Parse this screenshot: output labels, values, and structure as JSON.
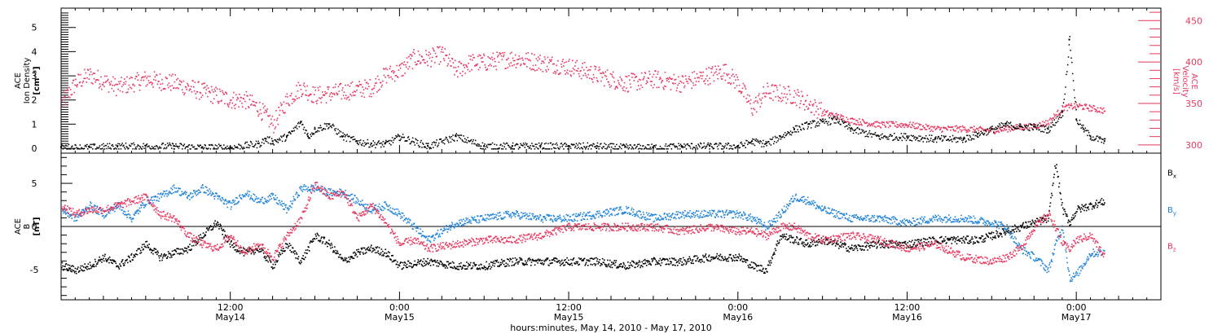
{
  "colors": {
    "axis": "#000000",
    "black": "#000000",
    "pink": "#e8385f",
    "blue": "#1f83d8"
  },
  "x_axis": {
    "title": "hours:minutes, May 14, 2010 - May 17, 2010",
    "ticks": [
      {
        "t": 12,
        "time": "12:00",
        "day": "May14"
      },
      {
        "t": 24,
        "time": "0:00",
        "day": "May15"
      },
      {
        "t": 36,
        "time": "12:00",
        "day": "May15"
      },
      {
        "t": 48,
        "time": "0:00",
        "day": "May16"
      },
      {
        "t": 60,
        "time": "12:00",
        "day": "May16"
      },
      {
        "t": 72,
        "time": "0:00",
        "day": "May17"
      }
    ]
  },
  "top_panel": {
    "left_label": [
      "ACE",
      "Ion Density",
      "[cm⁻³]"
    ],
    "right_label": [
      "ACE",
      "Velocity",
      "[km/s]"
    ]
  },
  "bottom_panel": {
    "left_label": [
      "ACE",
      "B",
      "[nT]"
    ],
    "legend": [
      {
        "text": "B",
        "sub": "x",
        "color": "#000000"
      },
      {
        "text": "B",
        "sub": "y",
        "color": "#1f83d8"
      },
      {
        "text": "B",
        "sub": "z",
        "color": "#e8385f"
      }
    ]
  },
  "chart_data": [
    {
      "type": "scatter",
      "xlim": [
        0,
        78
      ],
      "x_unit": "hours since 0:00 May 14, 2010",
      "ylim": [
        -0.2,
        5.8
      ],
      "ylabel": "ACE Ion Density [cm⁻³]",
      "y2lim": [
        290,
        465
      ],
      "y2label": "ACE Velocity [km/s]",
      "yticks": [
        0,
        1,
        2,
        3,
        4,
        5
      ],
      "y2ticks": [
        300,
        350,
        400,
        450
      ],
      "series": [
        {
          "axis": "left",
          "color": "#000000",
          "t": [
            0,
            2,
            4,
            6,
            8,
            10,
            12,
            14,
            14.5,
            15,
            16,
            17,
            17.5,
            18,
            19,
            20,
            21,
            22,
            23,
            24,
            26,
            28,
            30,
            32,
            34,
            36,
            38,
            40,
            42,
            44,
            46,
            48,
            49,
            50,
            51,
            52,
            53,
            54,
            55,
            56,
            58,
            60,
            62,
            64,
            65,
            66,
            67,
            68,
            69,
            70,
            71,
            71.5,
            72,
            72.5,
            73,
            74
          ],
          "values": [
            0.05,
            0.05,
            0.1,
            0.1,
            0.1,
            0.05,
            0.05,
            0.2,
            0.4,
            0.3,
            0.5,
            1.1,
            0.5,
            0.8,
            1.0,
            0.5,
            0.3,
            0.2,
            0.2,
            0.5,
            0.1,
            0.5,
            0.1,
            0.1,
            0.1,
            0.1,
            0.1,
            0.05,
            0.05,
            0.1,
            0.1,
            0.1,
            0.3,
            0.2,
            0.5,
            0.8,
            1.0,
            1.1,
            1.2,
            0.8,
            0.5,
            0.5,
            0.4,
            0.4,
            0.6,
            0.8,
            1.0,
            0.9,
            0.9,
            0.8,
            1.5,
            4.5,
            1.2,
            0.8,
            0.5,
            0.3
          ]
        },
        {
          "axis": "right",
          "color": "#e8385f",
          "t": [
            0,
            1,
            2,
            4,
            6,
            8,
            10,
            12,
            13,
            14,
            14.5,
            15,
            16,
            17,
            18,
            20,
            22,
            23,
            24,
            25,
            26,
            27,
            28,
            29,
            30,
            32,
            34,
            36,
            38,
            40,
            42,
            44,
            46,
            47,
            48,
            49,
            50,
            52,
            54,
            55,
            56,
            58,
            60,
            62,
            64,
            66,
            67,
            68,
            69,
            70,
            71,
            72,
            73,
            74
          ],
          "values": [
            350,
            375,
            385,
            370,
            380,
            375,
            365,
            355,
            355,
            345,
            335,
            325,
            355,
            370,
            360,
            365,
            370,
            385,
            390,
            405,
            405,
            410,
            390,
            400,
            400,
            405,
            400,
            395,
            385,
            375,
            380,
            375,
            385,
            390,
            375,
            345,
            365,
            360,
            340,
            335,
            330,
            325,
            325,
            320,
            320,
            318,
            320,
            322,
            323,
            328,
            345,
            348,
            345,
            342
          ]
        }
      ]
    },
    {
      "type": "scatter",
      "xlim": [
        0,
        78
      ],
      "x_unit": "hours since 0:00 May 14, 2010",
      "ylim": [
        -8.5,
        8.5
      ],
      "ylabel": "ACE B [nT]",
      "yticks": [
        -5,
        0,
        5
      ],
      "zero_line": true,
      "series": [
        {
          "name": "Bx",
          "color": "#000000",
          "t": [
            0,
            1,
            2,
            3,
            4,
            5,
            6,
            7,
            8,
            9,
            10,
            11,
            12,
            13,
            14,
            15,
            16,
            17,
            18,
            19,
            20,
            21,
            22,
            23,
            24,
            26,
            28,
            30,
            32,
            34,
            36,
            38,
            40,
            42,
            44,
            46,
            47,
            48,
            49,
            50,
            51,
            52,
            53,
            54,
            56,
            58,
            60,
            62,
            64,
            65,
            66,
            67,
            68,
            69,
            70,
            70.5,
            71,
            71.5,
            72,
            73,
            74
          ],
          "values": [
            -4.5,
            -5,
            -4.5,
            -3.5,
            -4.5,
            -3.5,
            -2,
            -3.5,
            -3,
            -2.5,
            -1,
            0.5,
            -2,
            -3,
            -2.5,
            -4.5,
            -2,
            -4,
            -1,
            -2,
            -4,
            -3,
            -2.5,
            -3,
            -4.5,
            -4,
            -4.5,
            -4.5,
            -4,
            -4,
            -4,
            -4,
            -4.5,
            -4,
            -4,
            -3.5,
            -3.5,
            -3.5,
            -4.5,
            -5,
            -1,
            -1.5,
            -2,
            -1.5,
            -2.5,
            -2,
            -2,
            -1.5,
            -1.5,
            -1.5,
            -1,
            -0.5,
            0,
            0.5,
            1,
            7.5,
            2,
            0.5,
            2,
            2.5,
            3
          ]
        },
        {
          "name": "By",
          "color": "#1f83d8",
          "t": [
            0,
            1,
            2,
            3,
            4,
            5,
            6,
            7,
            8,
            9,
            10,
            11,
            12,
            13,
            14,
            15,
            16,
            17,
            18,
            19,
            20,
            21,
            22,
            23,
            24,
            25,
            26,
            28,
            30,
            32,
            34,
            36,
            38,
            40,
            42,
            44,
            46,
            48,
            49,
            50,
            51,
            52,
            53,
            54,
            56,
            58,
            60,
            62,
            64,
            66,
            67,
            68,
            69,
            70,
            70.5,
            71,
            71.5,
            72,
            73,
            74
          ],
          "values": [
            2,
            1,
            2.5,
            1.5,
            2.5,
            1,
            3,
            3.5,
            4.5,
            3.5,
            4.5,
            3.5,
            2.5,
            4,
            3,
            3.5,
            2,
            4.5,
            4.5,
            4,
            4,
            3,
            2,
            2.5,
            1.5,
            0,
            -1.5,
            0.5,
            1,
            1.5,
            1,
            1,
            1.5,
            2,
            1,
            1.5,
            1.5,
            1.5,
            1,
            0,
            1.5,
            3.5,
            3,
            2,
            1,
            1,
            0.5,
            1,
            1,
            0.5,
            0,
            -2.5,
            -3.5,
            -5,
            -2,
            0,
            -6,
            -5.5,
            -3,
            -3
          ]
        },
        {
          "name": "Bz",
          "color": "#e8385f",
          "t": [
            0,
            1,
            2,
            3,
            4,
            5,
            6,
            7,
            8,
            9,
            10,
            11,
            12,
            13,
            14,
            15,
            16,
            17,
            18,
            19,
            20,
            21,
            22,
            23,
            24,
            25,
            26,
            28,
            30,
            32,
            34,
            36,
            38,
            40,
            42,
            44,
            46,
            48,
            49,
            50,
            51,
            52,
            53,
            54,
            56,
            58,
            60,
            62,
            64,
            66,
            67,
            68,
            69,
            70,
            70.5,
            71,
            71.5,
            72,
            73,
            74
          ],
          "values": [
            2.5,
            1.5,
            2,
            2,
            2.5,
            3,
            3.5,
            1.5,
            1,
            -1,
            -2,
            -2.5,
            -1,
            -3,
            -2,
            -3.5,
            -1,
            1,
            5,
            3.5,
            4,
            1,
            2.5,
            0.5,
            -2,
            -1.5,
            -2.5,
            -2,
            -1.5,
            -1.5,
            -1,
            0,
            0,
            0,
            0,
            -0.5,
            0,
            -0.5,
            -0.5,
            -1,
            0,
            0,
            -1,
            -1.5,
            -1,
            -1.5,
            -2.5,
            -2,
            -3.5,
            -4,
            -3.5,
            -2.5,
            0,
            1.5,
            0,
            -2,
            -2.5,
            -1.5,
            -1,
            -3.5
          ]
        }
      ]
    }
  ]
}
